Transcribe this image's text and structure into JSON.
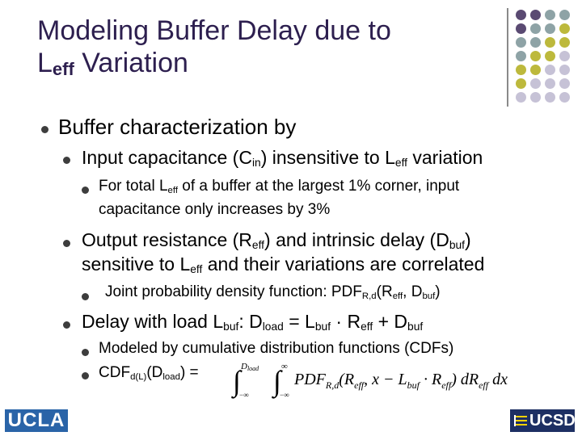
{
  "title": {
    "line1": "Modeling Buffer Delay due to",
    "line2_main": "L",
    "line2_sub": "eff",
    "line2_rest": " Variation"
  },
  "bullets": {
    "b1": "Buffer characterization by",
    "b1_1": {
      "a": "Input capacitance (C",
      "sub1": "in",
      "b": ") insensitive to L",
      "sub2": "eff",
      "c": " variation"
    },
    "b1_1_1": {
      "a": "For total L",
      "sub1": "eff",
      "b": " of a buffer at the largest 1% corner, input",
      "line2": "capacitance only increases by 3%"
    },
    "b1_2": {
      "a": "Output resistance (R",
      "sub1": "eff",
      "b": ") and intrinsic delay (D",
      "sub2": "buf",
      "c": ")",
      "line2a": "sensitive to L",
      "sub3": "eff",
      "line2b": " and their variations are correlated"
    },
    "b1_2_1": {
      "a": "Joint probability density function: PDF",
      "sub1": "R,d",
      "b": "(R",
      "sub2": "eff",
      "c": ", D",
      "sub3": "buf",
      "d": ")"
    },
    "b1_3": {
      "a": "Delay with load L",
      "sub1": "buf",
      "b": ": D",
      "sub2": "load",
      "c": " = L",
      "sub3": "buf",
      "d": " · R",
      "sub4": "eff",
      "e": " + D",
      "sub5": "buf"
    },
    "b1_3_1": "Modeled by cumulative distribution functions (CDFs)",
    "b1_3_2": {
      "a": "CDF",
      "sub1": "d(L)",
      "b": "(D",
      "sub2": "load",
      "c": ") ="
    }
  },
  "formula": {
    "upper_outer": "D",
    "upper_outer_sub": "load",
    "upper_inner": "∞",
    "lower": "−∞",
    "pdf": "PDF",
    "pdf_sub": "R,d",
    "args_a": "(R",
    "args_a_sub": "eff",
    "args_b": ", x − L",
    "args_b_sub": "buf",
    "args_c": " · R",
    "args_c_sub": "eff",
    "args_d": ") dR",
    "args_d_sub": "eff",
    "args_e": " dx"
  },
  "logos": {
    "left": "UCLA",
    "right": "UCSD"
  },
  "colors": {
    "purple": "#5a4a72",
    "teal": "#8ea3a6",
    "olive": "#bdb93c",
    "lavender": "#c6c2d6",
    "title": "#2d1f4f"
  }
}
